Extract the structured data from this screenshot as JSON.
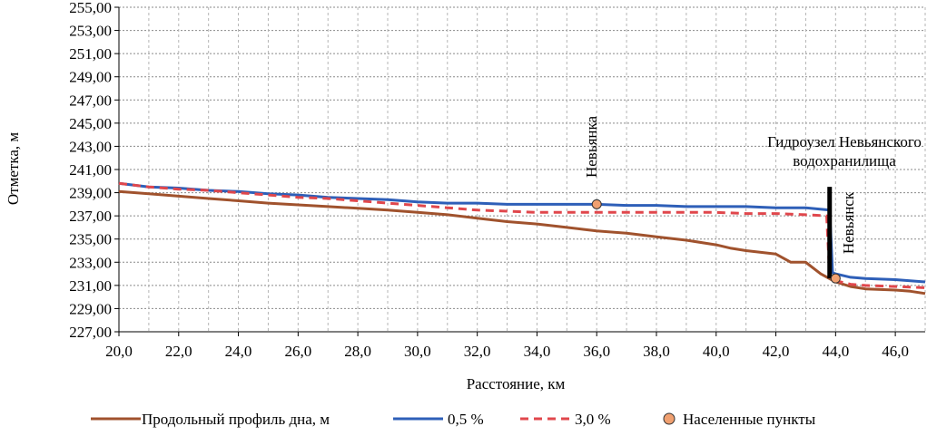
{
  "chart_data": {
    "type": "line",
    "title": "",
    "xlabel": "Расстояние, км",
    "ylabel": "Отметка, м",
    "xlim": [
      20,
      47
    ],
    "ylim": [
      227,
      255
    ],
    "x_tick_values": [
      20,
      22,
      24,
      26,
      28,
      30,
      32,
      34,
      36,
      38,
      40,
      42,
      44,
      46
    ],
    "x_tick_labels": [
      "20,0",
      "22,0",
      "24,0",
      "26,0",
      "28,0",
      "30,0",
      "32,0",
      "34,0",
      "36,0",
      "38,0",
      "40,0",
      "42,0",
      "44,0",
      "46,0"
    ],
    "y_tick_values": [
      227,
      229,
      231,
      233,
      235,
      237,
      239,
      241,
      243,
      245,
      247,
      249,
      251,
      253,
      255
    ],
    "y_tick_labels": [
      "227,00",
      "229,00",
      "231,00",
      "233,00",
      "235,00",
      "237,00",
      "239,00",
      "241,00",
      "243,00",
      "245,00",
      "247,00",
      "249,00",
      "251,00",
      "253,00",
      "255,00"
    ],
    "grid": true,
    "series": [
      {
        "name": "Продольный профиль дна, м",
        "color": "#a0522d",
        "style": "solid",
        "points": [
          [
            20,
            239.1
          ],
          [
            21,
            238.9
          ],
          [
            22,
            238.7
          ],
          [
            23,
            238.5
          ],
          [
            24,
            238.3
          ],
          [
            25,
            238.1
          ],
          [
            26,
            237.95
          ],
          [
            27,
            237.8
          ],
          [
            28,
            237.65
          ],
          [
            29,
            237.5
          ],
          [
            30,
            237.3
          ],
          [
            31,
            237.1
          ],
          [
            32,
            236.8
          ],
          [
            33,
            236.5
          ],
          [
            34,
            236.3
          ],
          [
            35,
            236.0
          ],
          [
            36,
            235.7
          ],
          [
            37,
            235.5
          ],
          [
            38,
            235.2
          ],
          [
            39,
            234.9
          ],
          [
            40,
            234.5
          ],
          [
            40.5,
            234.2
          ],
          [
            41,
            234.0
          ],
          [
            42,
            233.7
          ],
          [
            42.5,
            233.0
          ],
          [
            43,
            233.0
          ],
          [
            43.5,
            232.0
          ],
          [
            44,
            231.3
          ],
          [
            44.5,
            230.9
          ],
          [
            45,
            230.7
          ],
          [
            46,
            230.6
          ],
          [
            46.5,
            230.5
          ],
          [
            47,
            230.3
          ]
        ]
      },
      {
        "name": "0,5 %",
        "color": "#2e5fb8",
        "style": "solid",
        "points": [
          [
            20,
            239.8
          ],
          [
            21,
            239.5
          ],
          [
            22,
            239.4
          ],
          [
            23,
            239.2
          ],
          [
            24,
            239.1
          ],
          [
            25,
            238.9
          ],
          [
            26,
            238.8
          ],
          [
            27,
            238.6
          ],
          [
            28,
            238.5
          ],
          [
            29,
            238.4
          ],
          [
            30,
            238.2
          ],
          [
            31,
            238.1
          ],
          [
            32,
            238.1
          ],
          [
            33,
            238.0
          ],
          [
            34,
            238.0
          ],
          [
            35,
            238.0
          ],
          [
            36,
            238.0
          ],
          [
            37,
            237.9
          ],
          [
            38,
            237.9
          ],
          [
            39,
            237.8
          ],
          [
            40,
            237.8
          ],
          [
            41,
            237.8
          ],
          [
            42,
            237.7
          ],
          [
            43,
            237.7
          ],
          [
            43.8,
            237.5
          ],
          [
            43.9,
            232.1
          ],
          [
            44,
            232.0
          ],
          [
            44.5,
            231.7
          ],
          [
            45,
            231.6
          ],
          [
            46,
            231.5
          ],
          [
            47,
            231.3
          ]
        ]
      },
      {
        "name": "3,0 %",
        "color": "#e0474c",
        "style": "dashed",
        "points": [
          [
            20,
            239.8
          ],
          [
            21,
            239.5
          ],
          [
            22,
            239.3
          ],
          [
            23,
            239.2
          ],
          [
            24,
            239.0
          ],
          [
            25,
            238.8
          ],
          [
            26,
            238.6
          ],
          [
            27,
            238.5
          ],
          [
            28,
            238.3
          ],
          [
            29,
            238.1
          ],
          [
            30,
            237.9
          ],
          [
            31,
            237.7
          ],
          [
            32,
            237.5
          ],
          [
            33,
            237.4
          ],
          [
            34,
            237.3
          ],
          [
            35,
            237.3
          ],
          [
            36,
            237.3
          ],
          [
            37,
            237.3
          ],
          [
            38,
            237.3
          ],
          [
            39,
            237.3
          ],
          [
            40,
            237.3
          ],
          [
            41,
            237.2
          ],
          [
            42,
            237.2
          ],
          [
            43,
            237.1
          ],
          [
            43.7,
            237.0
          ],
          [
            43.8,
            231.8
          ],
          [
            44,
            231.4
          ],
          [
            44.5,
            231.1
          ],
          [
            45,
            231.0
          ],
          [
            46,
            230.9
          ],
          [
            47,
            230.8
          ]
        ]
      }
    ],
    "settlements": {
      "name": "Населенные пункты",
      "color": "#f0a070",
      "points": [
        {
          "x": 36.0,
          "y": 238.0,
          "label": "Невьянка"
        },
        {
          "x": 44.0,
          "y": 231.6,
          "label": "Невьянск"
        }
      ]
    },
    "dam": {
      "x": 43.8,
      "y_from": 231.6,
      "y_to": 239.5,
      "label_lines": [
        "Гидроузел Невьянского",
        "водохранилища"
      ]
    },
    "legend_position": "bottom"
  }
}
